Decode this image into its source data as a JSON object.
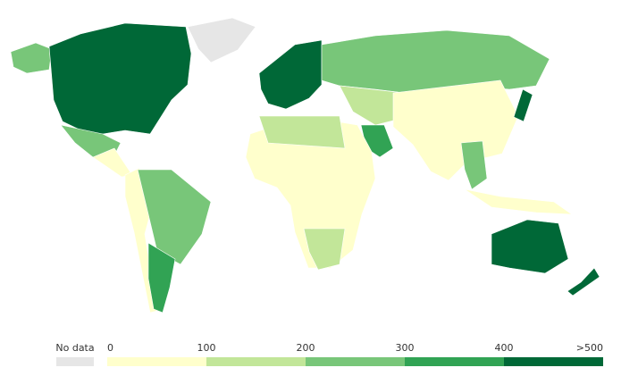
{
  "legend": {
    "no_data": {
      "label": "No data",
      "color": "#e6e6e6"
    },
    "labels": [
      "0",
      "100",
      "200",
      "300",
      "400",
      ">500"
    ],
    "colors": [
      "#ffffcc",
      "#c2e699",
      "#78c679",
      "#31a354",
      "#006837"
    ]
  }
}
